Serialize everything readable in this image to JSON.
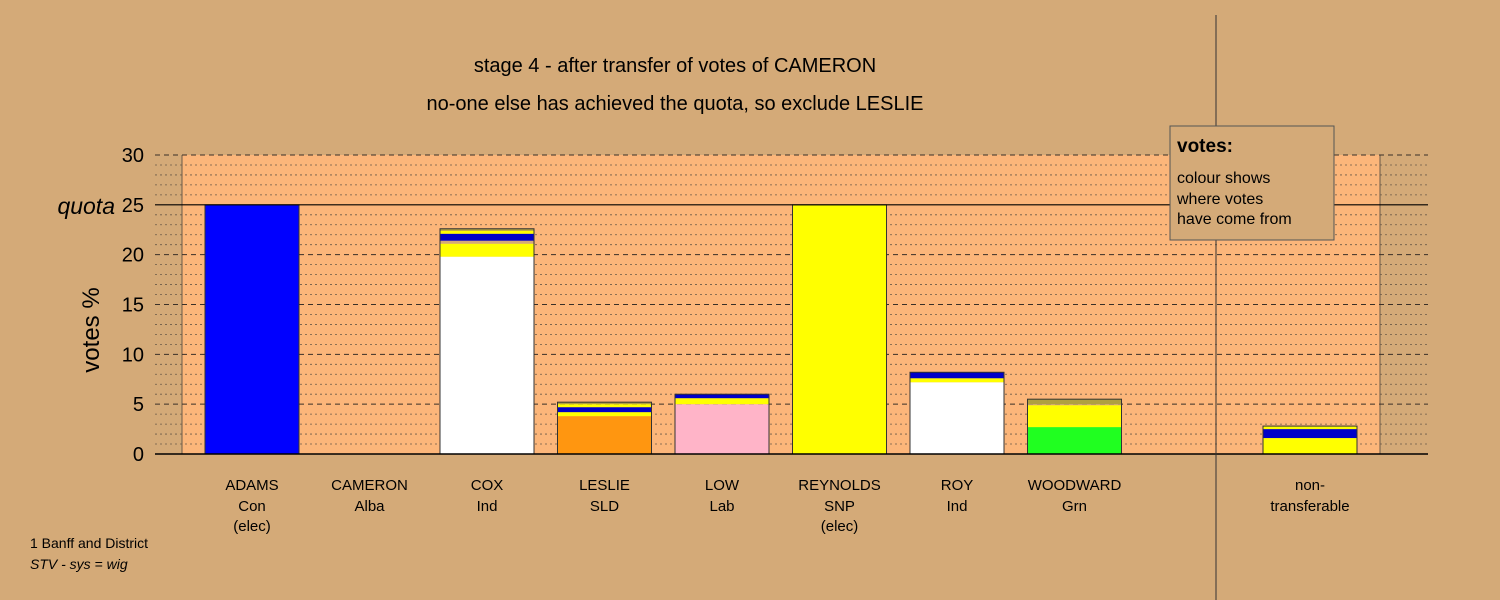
{
  "chart_data": {
    "type": "bar",
    "title": "stage 4 - after transfer of votes of CAMERON",
    "subtitle": "no-one else has achieved the quota, so exclude LESLIE",
    "ylabel": "votes %",
    "quota_label": "quota",
    "quota": 25,
    "ylim": [
      0,
      30
    ],
    "yticks": [
      0,
      5,
      10,
      15,
      20,
      25,
      30
    ],
    "grid": true,
    "legend_position": "top-right",
    "legend": {
      "title": "votes:",
      "lines": [
        "colour shows",
        "where votes",
        "have come from"
      ]
    },
    "candidates": [
      {
        "name": "ADAMS",
        "party": "Con",
        "status": "(elec)",
        "segments": [
          {
            "value": 25.0,
            "color": "#0000ff"
          }
        ]
      },
      {
        "name": "CAMERON",
        "party": "Alba",
        "status": "",
        "segments": []
      },
      {
        "name": "COX",
        "party": "Ind",
        "status": "",
        "segments": [
          {
            "value": 19.8,
            "color": "#ffffff"
          },
          {
            "value": 1.3,
            "color": "#ffff00"
          },
          {
            "value": 0.3,
            "color": "#d4aa78"
          },
          {
            "value": 0.7,
            "color": "#0000c8"
          },
          {
            "value": 0.3,
            "color": "#ffff00"
          },
          {
            "value": 0.2,
            "color": "#b0a040"
          }
        ]
      },
      {
        "name": "LESLIE",
        "party": "SLD",
        "status": "",
        "segments": [
          {
            "value": 3.8,
            "color": "#ff9610"
          },
          {
            "value": 0.4,
            "color": "#ffff00"
          },
          {
            "value": 0.5,
            "color": "#0000c8"
          },
          {
            "value": 0.3,
            "color": "#ffff00"
          },
          {
            "value": 0.2,
            "color": "#b0a040"
          }
        ]
      },
      {
        "name": "LOW",
        "party": "Lab",
        "status": "",
        "segments": [
          {
            "value": 5.0,
            "color": "#ffb4c8"
          },
          {
            "value": 0.6,
            "color": "#ffff00"
          },
          {
            "value": 0.4,
            "color": "#0000c8"
          }
        ]
      },
      {
        "name": "REYNOLDS",
        "party": "SNP",
        "status": "(elec)",
        "segments": [
          {
            "value": 25.0,
            "color": "#ffff00"
          }
        ]
      },
      {
        "name": "ROY",
        "party": "Ind",
        "status": "",
        "segments": [
          {
            "value": 7.2,
            "color": "#ffffff"
          },
          {
            "value": 0.4,
            "color": "#ffff00"
          },
          {
            "value": 0.6,
            "color": "#0000c8"
          }
        ]
      },
      {
        "name": "WOODWARD",
        "party": "Grn",
        "status": "",
        "segments": [
          {
            "value": 2.7,
            "color": "#20ff20"
          },
          {
            "value": 2.2,
            "color": "#ffff00"
          },
          {
            "value": 0.1,
            "color": "#d4aa78"
          },
          {
            "value": 0.5,
            "color": "#b0a040"
          }
        ]
      }
    ],
    "nontransferable": {
      "name": "non-",
      "name2": "transferable",
      "segments": [
        {
          "value": 1.6,
          "color": "#ffff00"
        },
        {
          "value": 0.9,
          "color": "#0000c8"
        },
        {
          "value": 0.3,
          "color": "#ffff00"
        }
      ]
    }
  },
  "footer": {
    "line1": "1 Banff and District",
    "line2": "STV - sys = wig"
  }
}
